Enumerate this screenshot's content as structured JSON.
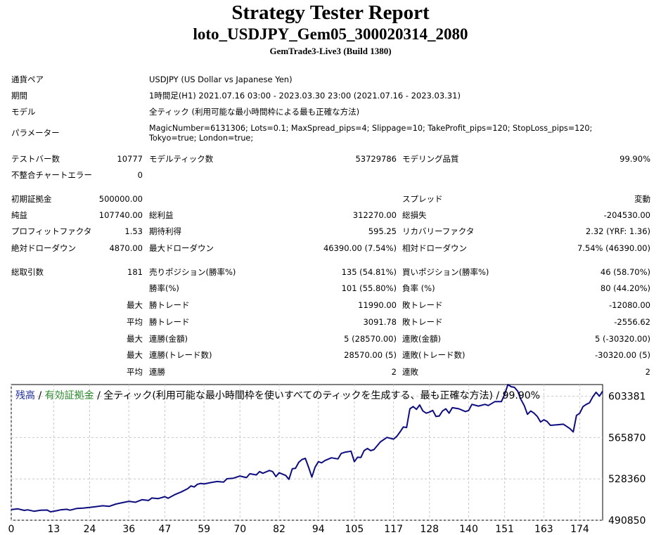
{
  "header": {
    "title": "Strategy Tester Report",
    "ea_name": "loto_USDJPY_Gem05_300020314_2080",
    "server": "GemTrade3-Live3 (Build 1380)"
  },
  "info": {
    "pair_label": "通貨ペア",
    "pair_value": "USDJPY (US Dollar vs Japanese Yen)",
    "period_label": "期間",
    "period_value": "1時間足(H1) 2021.07.16 03:00 - 2023.03.30 23:00 (2021.07.16 - 2023.03.31)",
    "model_label": "モデル",
    "model_value": "全ティック (利用可能な最小時間枠による最も正確な方法)",
    "params_label": "パラメーター",
    "params_value": "MagicNumber=6131306; Lots=0.1; MaxSpread_pips=4; Slippage=10; TakeProfit_pips=120; StopLoss_pips=120; Tokyo=true; London=true;"
  },
  "stats": {
    "bars_label": "テストバー数",
    "bars_value": "10777",
    "ticks_label": "モデルティック数",
    "ticks_value": "53729786",
    "quality_label": "モデリング品質",
    "quality_value": "99.90%",
    "errors_label": "不整合チャートエラー",
    "errors_value": "0",
    "deposit_label": "初期証拠金",
    "deposit_value": "500000.00",
    "spread_label": "スプレッド",
    "spread_value": "変動",
    "net_label": "純益",
    "net_value": "107740.00",
    "gross_profit_label": "総利益",
    "gross_profit_value": "312270.00",
    "gross_loss_label": "総損失",
    "gross_loss_value": "-204530.00",
    "pf_label": "プロフィットファクタ",
    "pf_value": "1.53",
    "expected_label": "期待利得",
    "expected_value": "595.25",
    "recovery_label": "リカバリーファクタ",
    "recovery_value": "2.32 (YRF: 1.36)",
    "abs_dd_label": "絶対ドローダウン",
    "abs_dd_value": "4870.00",
    "max_dd_label": "最大ドローダウン",
    "max_dd_value": "46390.00 (7.54%)",
    "rel_dd_label": "相対ドローダウン",
    "rel_dd_value": "7.54% (46390.00)",
    "trades_label": "総取引数",
    "trades_value": "181",
    "short_label": "売りポジション(勝率%)",
    "short_value": "135 (54.81%)",
    "long_label": "買いポジション(勝率%)",
    "long_value": "46 (58.70%)",
    "win_rate_label": "勝率(%)",
    "win_rate_value": "101 (55.80%)",
    "loss_rate_label": "負率 (%)",
    "loss_rate_value": "80 (44.20%)",
    "max_prefix": "最大",
    "avg_prefix": "平均",
    "largest_win_label": "勝トレード",
    "largest_win_value": "11990.00",
    "largest_loss_label": "敗トレード",
    "largest_loss_value": "-12080.00",
    "avg_win_label": "勝トレード",
    "avg_win_value": "3091.78",
    "avg_loss_label": "敗トレード",
    "avg_loss_value": "-2556.62",
    "max_consec_wins_label": "連勝(金額)",
    "max_consec_wins_value": "5 (28570.00)",
    "max_consec_losses_label": "連敗(金額)",
    "max_consec_losses_value": "5 (-30320.00)",
    "max_consec_profit_label": "連勝(トレード数)",
    "max_consec_profit_value": "28570.00 (5)",
    "max_consec_loss_label": "連敗(トレード数)",
    "max_consec_loss_value": "-30320.00 (5)",
    "avg_consec_wins_label": "連勝",
    "avg_consec_wins_value": "2",
    "avg_consec_losses_label": "連敗",
    "avg_consec_losses_value": "2"
  },
  "chart_title": {
    "balance": "残高",
    "sep1": " / ",
    "equity": "有効証拠金",
    "sep2": " / ",
    "rest": "全ティック(利用可能な最小時間枠を使いすべてのティックを生成する、最も正確な方法) / 99.90%"
  },
  "chart_data": {
    "type": "line",
    "title": "",
    "xlabel": "",
    "ylabel": "",
    "xlim": [
      0,
      181
    ],
    "ylim": [
      490850,
      614000
    ],
    "x_ticks": [
      0,
      13,
      24,
      36,
      47,
      59,
      70,
      82,
      94,
      105,
      117,
      128,
      140,
      151,
      163,
      174
    ],
    "y_ticks": [
      490850,
      528360,
      565870,
      603381
    ],
    "grid": true,
    "colors": {
      "line": "#0d0d80",
      "grid": "#c8c8c8"
    },
    "series": [
      {
        "x": [
          0,
          2,
          4,
          5,
          7,
          9,
          11,
          12,
          14,
          15,
          17,
          18,
          20,
          22,
          24,
          26,
          28,
          30,
          32,
          34,
          36,
          38,
          40,
          42,
          43,
          45,
          47,
          48,
          50,
          52,
          54,
          55,
          56,
          57,
          58,
          59,
          61,
          63,
          65,
          66,
          68,
          70,
          72,
          73,
          75,
          76,
          77,
          79,
          80,
          81,
          82,
          84,
          85,
          86,
          87,
          88,
          89,
          90,
          91,
          92,
          93,
          94,
          95,
          96,
          98,
          100,
          101,
          102,
          104,
          105,
          106,
          107,
          108,
          109,
          110,
          111,
          112,
          113,
          115,
          117,
          118,
          119,
          120,
          121,
          122,
          123,
          124,
          125,
          126,
          127,
          128,
          129,
          130,
          131,
          132,
          133,
          134,
          135,
          137,
          139,
          140,
          141,
          143,
          145,
          146,
          148,
          150,
          151,
          152,
          153,
          154,
          155,
          156,
          157,
          158,
          159,
          160,
          161,
          162,
          163,
          164,
          165,
          167,
          169,
          170,
          171,
          172,
          173,
          174,
          175,
          176,
          177,
          178,
          179,
          180,
          181
        ],
        "values": [
          500500,
          501200,
          499800,
          500300,
          499000,
          499900,
          500100,
          498500,
          499500,
          500200,
          500800,
          500000,
          501500,
          501800,
          502500,
          503200,
          504000,
          503500,
          505500,
          506800,
          508000,
          507200,
          509500,
          508800,
          511000,
          510500,
          512200,
          510800,
          514000,
          516500,
          519500,
          522000,
          521000,
          523500,
          524300,
          523800,
          525000,
          526000,
          525500,
          528500,
          529000,
          531000,
          529500,
          533000,
          532000,
          535000,
          533500,
          536000,
          535000,
          530500,
          534000,
          531500,
          528000,
          537500,
          538000,
          543500,
          546000,
          547000,
          539000,
          530000,
          539000,
          544000,
          543000,
          545000,
          547500,
          546500,
          551500,
          552500,
          553500,
          544000,
          548000,
          547800,
          554000,
          556000,
          554000,
          555000,
          558500,
          562000,
          566000,
          564500,
          567000,
          571000,
          575500,
          575000,
          592000,
          594000,
          591500,
          595500,
          590000,
          588000,
          589000,
          590500,
          585000,
          585500,
          590000,
          592000,
          588000,
          593000,
          592000,
          589500,
          590500,
          596000,
          594500,
          596000,
          595000,
          598500,
          598500,
          605000,
          614000,
          612000,
          611500,
          608000,
          600500,
          595000,
          587000,
          590000,
          588000,
          585000,
          580000,
          582000,
          580500,
          577000,
          577500,
          578000,
          576000,
          574000,
          571000,
          586000,
          588000,
          594000,
          596000,
          597500,
          603000,
          607000,
          603500,
          608000
        ]
      }
    ]
  }
}
